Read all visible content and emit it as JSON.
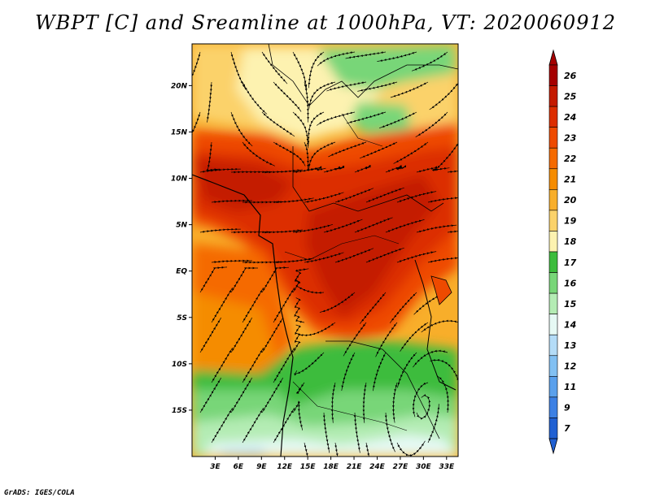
{
  "title": "WBPT [C] and Sreamline at 1000hPa, VT: 2020060912",
  "footer": "GrADS: IGES/COLA",
  "map": {
    "lat_labels": [
      "20N",
      "15N",
      "10N",
      "5N",
      "EQ",
      "5S",
      "10S",
      "15S"
    ],
    "lat_values": [
      20,
      15,
      10,
      5,
      0,
      -5,
      -10,
      -15
    ],
    "lon_labels": [
      "3E",
      "6E",
      "9E",
      "12E",
      "15E",
      "18E",
      "21E",
      "24E",
      "27E",
      "30E",
      "33E"
    ],
    "lon_values": [
      3,
      6,
      9,
      12,
      15,
      18,
      21,
      24,
      27,
      30,
      33
    ],
    "lon_range": [
      0,
      34.5
    ],
    "lat_range": [
      -20,
      24.5
    ],
    "variable": "WBPT",
    "units": "C",
    "level": "1000hPa"
  },
  "colorbar": {
    "labels": [
      "26",
      "25",
      "24",
      "23",
      "22",
      "21",
      "20",
      "19",
      "18",
      "17",
      "16",
      "15",
      "14",
      "13",
      "12",
      "11",
      "9",
      "7"
    ],
    "colors": [
      "#a50000",
      "#c41a00",
      "#dc2d00",
      "#ee4a00",
      "#f56a00",
      "#f58c00",
      "#f8ae2a",
      "#fbd26a",
      "#fdf2b0",
      "#3cbc3c",
      "#78d678",
      "#b4ecb4",
      "#e6f9f4",
      "#b4dcf7",
      "#82c0f2",
      "#5aa0ec",
      "#3c80e4",
      "#2060d2"
    ]
  }
}
